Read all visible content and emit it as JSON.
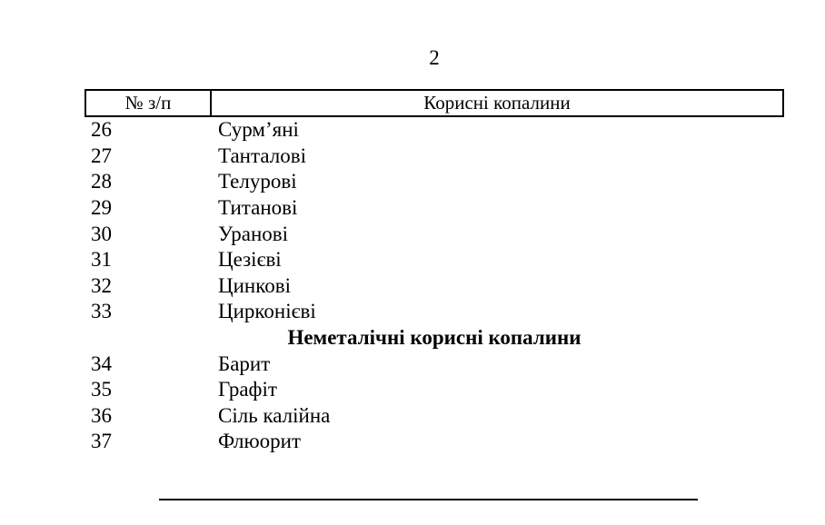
{
  "page": {
    "number": "2"
  },
  "table": {
    "header": {
      "num_label": "№ з/п",
      "name_label": "Корисні копалини"
    },
    "groups": [
      {
        "section_title": "",
        "rows": [
          {
            "num": "26",
            "name": "Сурм’яні"
          },
          {
            "num": "27",
            "name": "Танталові"
          },
          {
            "num": "28",
            "name": "Телурові"
          },
          {
            "num": "29",
            "name": "Титанові"
          },
          {
            "num": "30",
            "name": "Уранові"
          },
          {
            "num": "31",
            "name": "Цезієві"
          },
          {
            "num": "32",
            "name": "Цинкові"
          },
          {
            "num": "33",
            "name": "Цирконієві"
          }
        ]
      },
      {
        "section_title": "Неметалічні корисні копалини",
        "rows": [
          {
            "num": "34",
            "name": "Барит"
          },
          {
            "num": "35",
            "name": "Графіт"
          },
          {
            "num": "36",
            "name": "Сіль калійна"
          },
          {
            "num": "37",
            "name": "Флюорит"
          }
        ]
      }
    ]
  },
  "colors": {
    "text": "#000000",
    "background": "#ffffff",
    "border": "#000000"
  }
}
